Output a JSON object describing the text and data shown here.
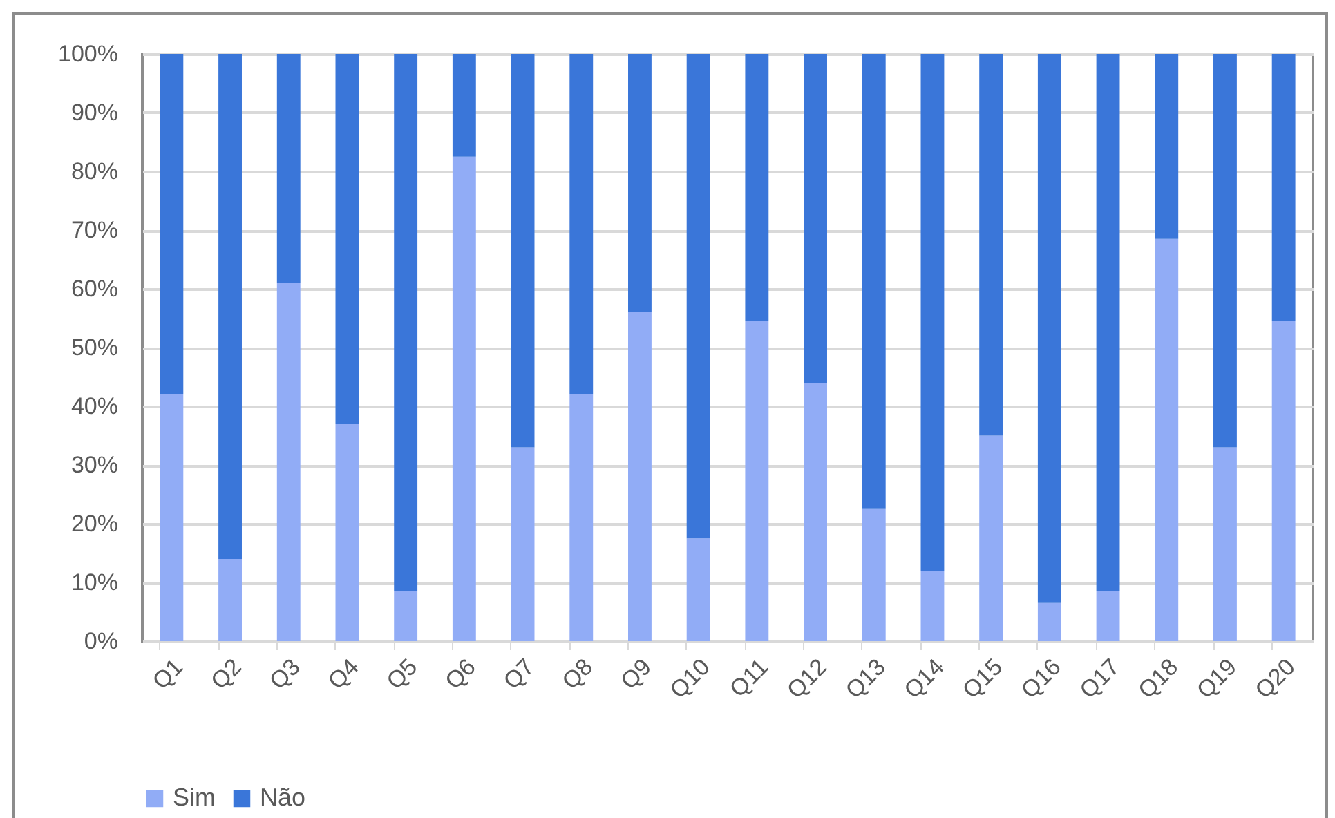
{
  "chart_data": {
    "type": "bar",
    "stacked": true,
    "categories": [
      "Q1",
      "Q2",
      "Q3",
      "Q4",
      "Q5",
      "Q6",
      "Q7",
      "Q8",
      "Q9",
      "Q10",
      "Q11",
      "Q12",
      "Q13",
      "Q14",
      "Q15",
      "Q16",
      "Q17",
      "Q18",
      "Q19",
      "Q20"
    ],
    "series": [
      {
        "name": "Sim",
        "color": "#91acf6",
        "values": [
          42,
          14,
          61,
          37,
          8.5,
          82.5,
          33,
          42,
          56,
          17.5,
          54.5,
          44,
          22.5,
          12,
          35,
          6.5,
          8.5,
          68.5,
          33,
          54.5
        ]
      },
      {
        "name": "Não",
        "color": "#3a76d9",
        "values": [
          58,
          86,
          39,
          63,
          91.5,
          17.5,
          67,
          58,
          44,
          82.5,
          45.5,
          56,
          77.5,
          88,
          65,
          93.5,
          91.5,
          31.5,
          67,
          45.5
        ]
      }
    ],
    "ylim": [
      0,
      100
    ],
    "yticks": [
      {
        "value": 0,
        "label": "0%"
      },
      {
        "value": 10,
        "label": "10%"
      },
      {
        "value": 20,
        "label": "20%"
      },
      {
        "value": 30,
        "label": "30%"
      },
      {
        "value": 40,
        "label": "40%"
      },
      {
        "value": 50,
        "label": "50%"
      },
      {
        "value": 60,
        "label": "60%"
      },
      {
        "value": 70,
        "label": "70%"
      },
      {
        "value": 80,
        "label": "80%"
      },
      {
        "value": 90,
        "label": "90%"
      },
      {
        "value": 100,
        "label": "100%"
      }
    ],
    "grid": "y",
    "legend": "bottom"
  }
}
